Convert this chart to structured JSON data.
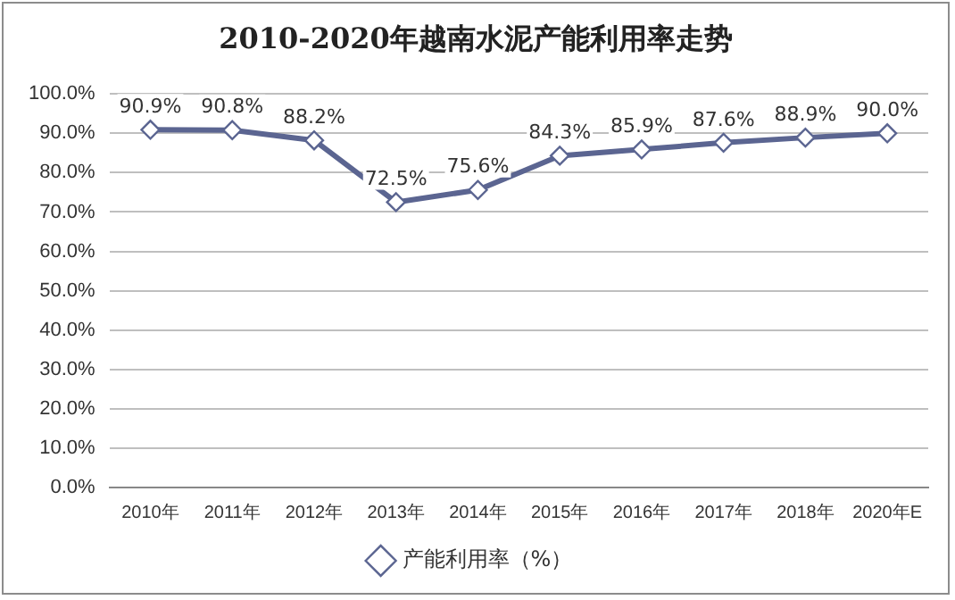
{
  "chart_data": {
    "type": "line",
    "title": "2010-2020年越南水泥产能利用率走势",
    "categories": [
      "2010年",
      "2011年",
      "2012年",
      "2013年",
      "2014年",
      "2015年",
      "2016年",
      "2017年",
      "2018年",
      "2020年E"
    ],
    "series": [
      {
        "name": "产能利用率（%）",
        "color": "#5b6591",
        "values": [
          90.9,
          90.8,
          88.2,
          72.5,
          75.6,
          84.3,
          85.9,
          87.6,
          88.9,
          90.0
        ],
        "value_labels": [
          "90.9%",
          "90.8%",
          "88.2%",
          "72.5%",
          "75.6%",
          "84.3%",
          "85.9%",
          "87.6%",
          "88.9%",
          "90.0%"
        ]
      }
    ],
    "ylim": [
      0,
      100
    ],
    "yticks": [
      {
        "value": 0,
        "label": "0.0%"
      },
      {
        "value": 10,
        "label": "10.0%"
      },
      {
        "value": 20,
        "label": "20.0%"
      },
      {
        "value": 30,
        "label": "30.0%"
      },
      {
        "value": 40,
        "label": "40.0%"
      },
      {
        "value": 50,
        "label": "50.0%"
      },
      {
        "value": 60,
        "label": "60.0%"
      },
      {
        "value": 70,
        "label": "70.0%"
      },
      {
        "value": 80,
        "label": "80.0%"
      },
      {
        "value": 90,
        "label": "90.0%"
      },
      {
        "value": 100,
        "label": "100.0%"
      }
    ],
    "grid": "y",
    "legend": "bottom",
    "marker": "diamond",
    "line_style": "solid"
  }
}
